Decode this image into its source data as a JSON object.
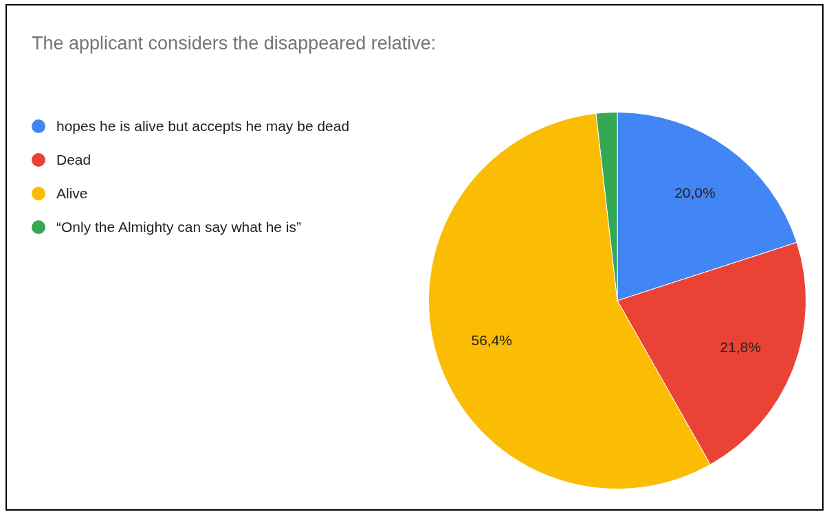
{
  "chart_data": {
    "type": "pie",
    "title": "The applicant considers the disappeared relative:",
    "categories": [
      "hopes he is alive but accepts he may be dead",
      "Dead",
      "Alive",
      "“Only the Almighty can say what he is”"
    ],
    "values": [
      20.0,
      21.8,
      56.4,
      1.8
    ],
    "colors": [
      "#4285f4",
      "#ea4335",
      "#fbbc04",
      "#34a853"
    ],
    "value_labels": [
      "20,0%",
      "21,8%",
      "56,4%",
      null
    ],
    "legend": "left"
  }
}
